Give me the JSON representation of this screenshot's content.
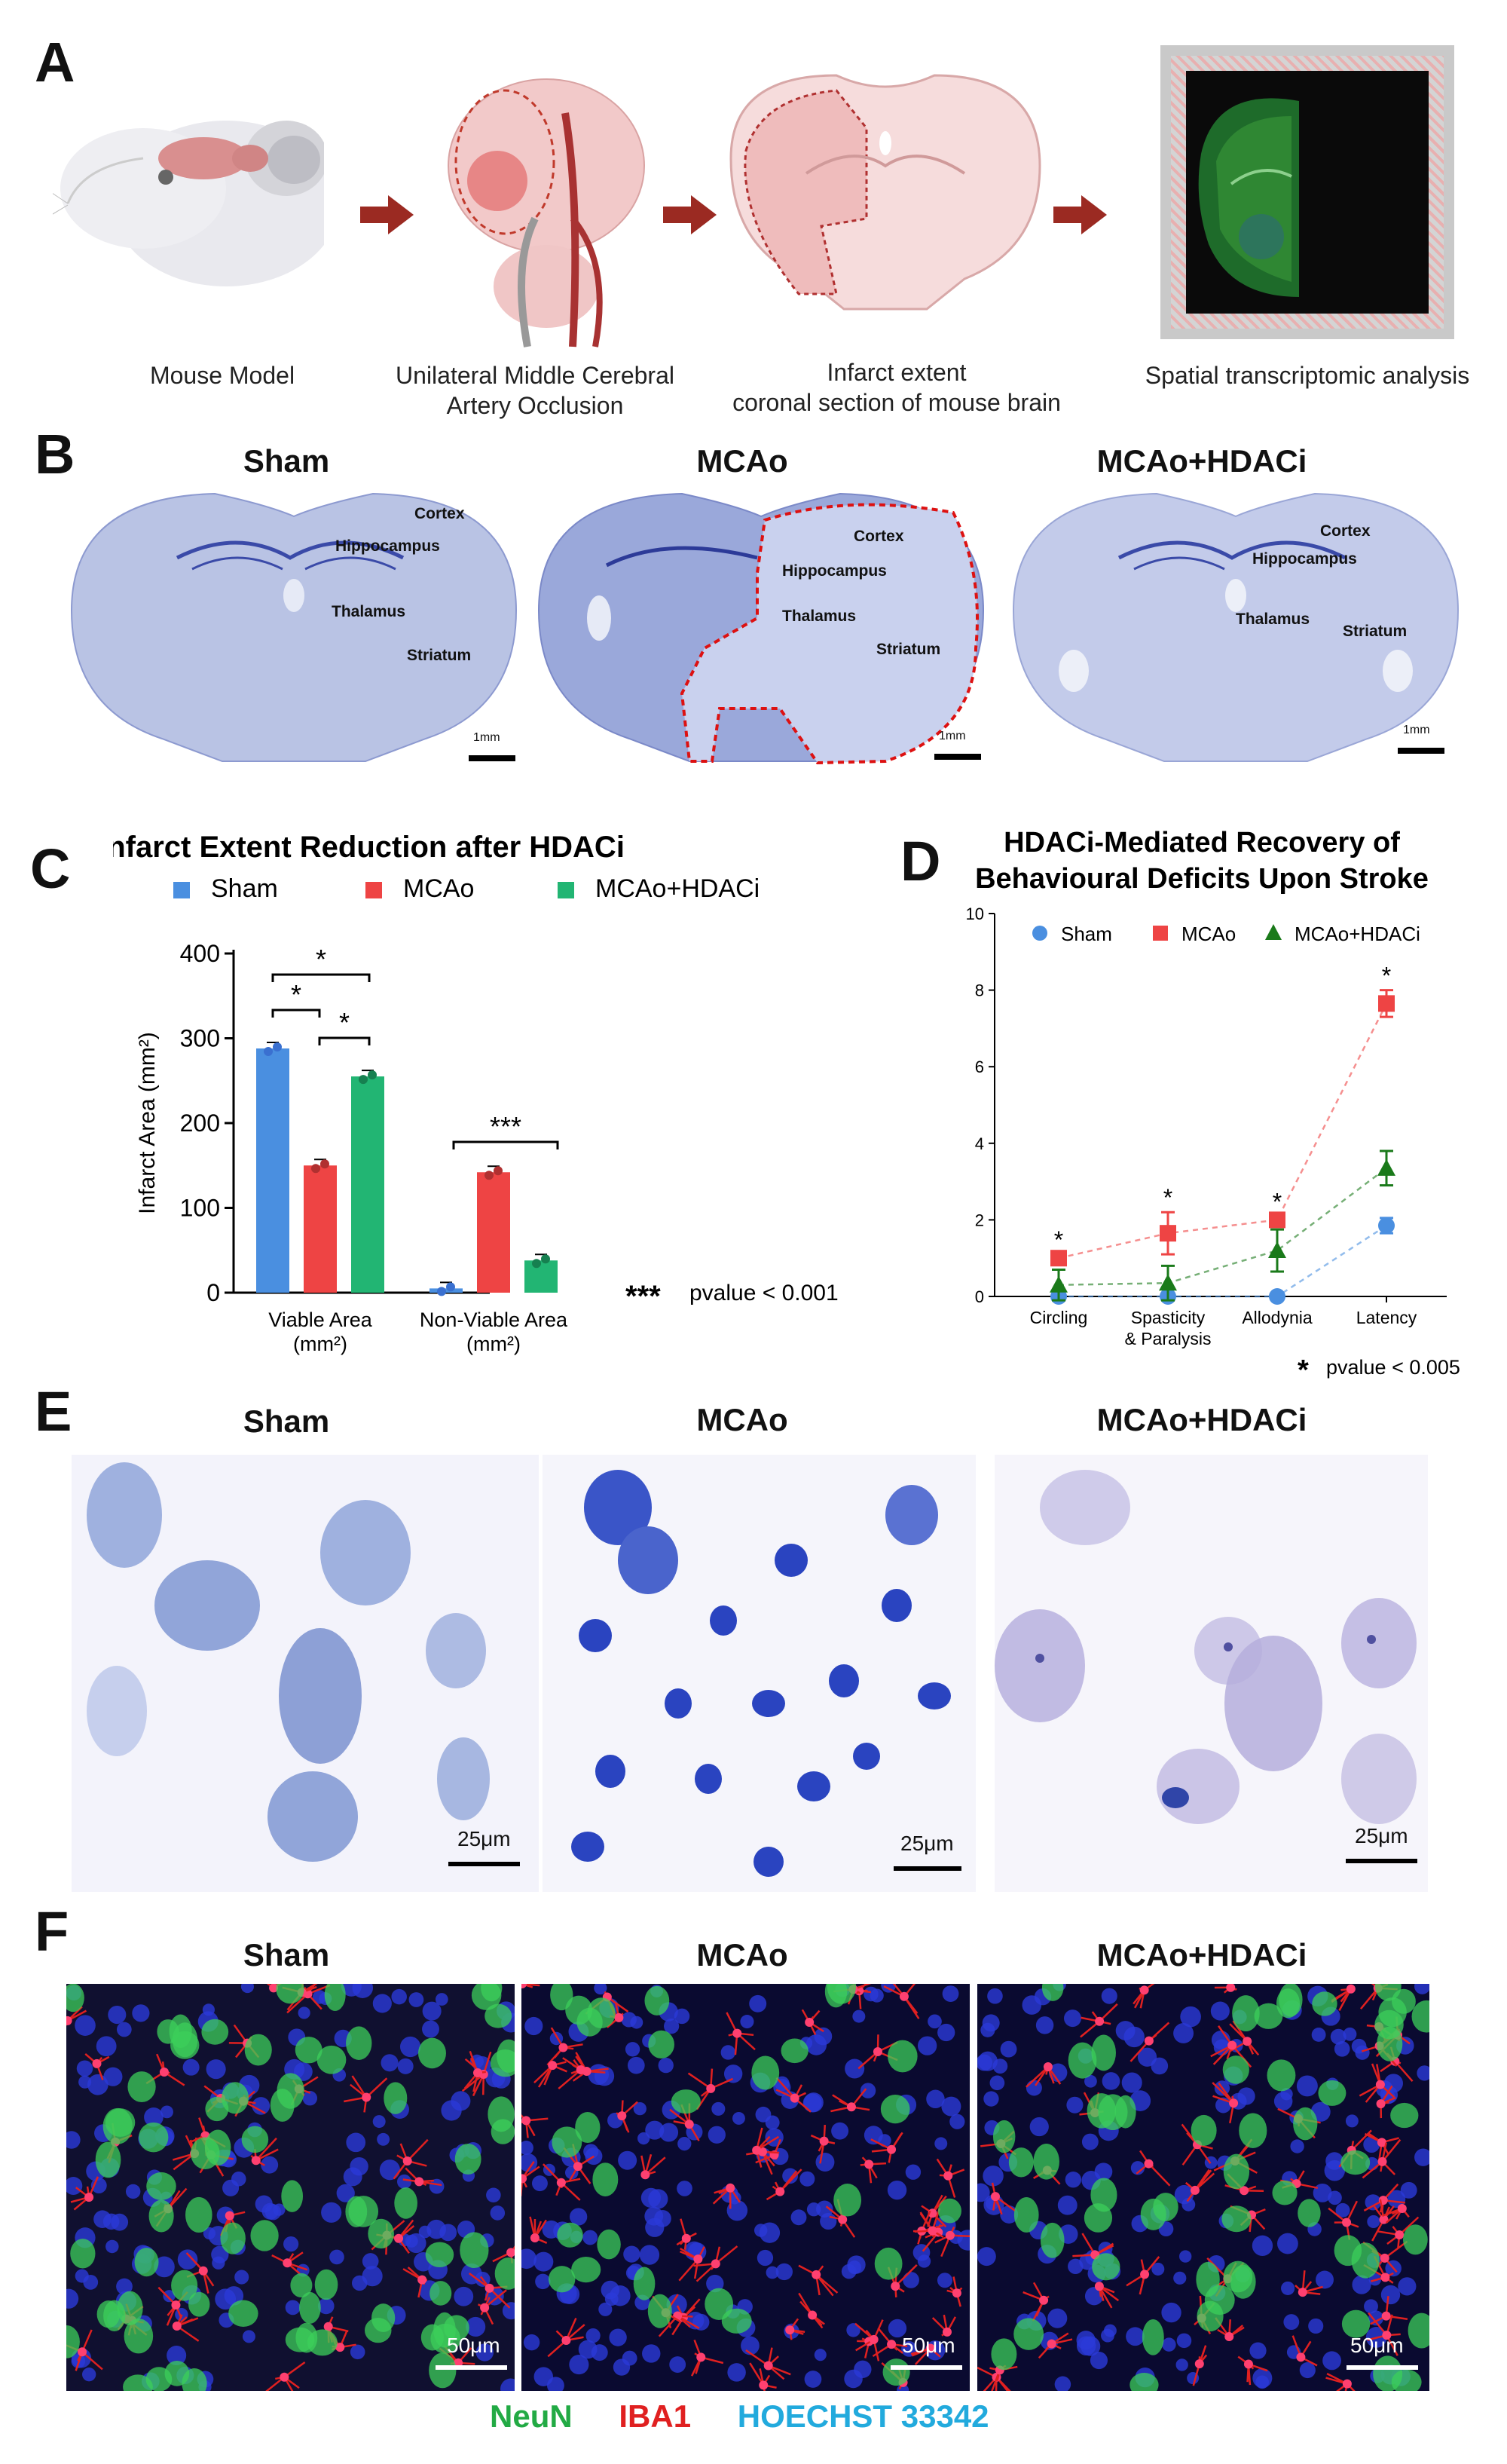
{
  "panels": {
    "A": "A",
    "B": "B",
    "C": "C",
    "D": "D",
    "E": "E",
    "F": "F"
  },
  "panel_a": {
    "steps": [
      {
        "caption": "Mouse Model"
      },
      {
        "caption": "Unilateral Middle Cerebral\nArtery Occlusion"
      },
      {
        "caption": "Infarct extent\ncoronal section of mouse brain"
      },
      {
        "caption": "Spatial transcriptomic analysis"
      }
    ]
  },
  "panel_b": {
    "groups": [
      {
        "title": "Sham",
        "regions": [
          "Cortex",
          "Hippocampus",
          "Thalamus",
          "Striatum"
        ],
        "scale": "1mm"
      },
      {
        "title": "MCAo",
        "regions": [
          "Cortex",
          "Hippocampus",
          "Thalamus",
          "Striatum"
        ],
        "scale": "1mm"
      },
      {
        "title": "MCAo+HDACi",
        "regions": [
          "Cortex",
          "Hippocampus",
          "Thalamus",
          "Striatum"
        ],
        "scale": "1mm"
      }
    ]
  },
  "chart_data": [
    {
      "type": "bar",
      "title": "Infarct Extent Reduction after HDACi",
      "ylabel": "Infarct  Area (mm²)",
      "ylim": [
        0,
        400
      ],
      "yticks": [
        0,
        100,
        200,
        300,
        400
      ],
      "categories": [
        "Viable Area\n(mm²)",
        "Non-Viable Area\n(mm²)"
      ],
      "series": [
        {
          "name": "Sham",
          "color": "#4a8fe0",
          "values": [
            288,
            5
          ]
        },
        {
          "name": "MCAo",
          "color": "#ee4444",
          "values": [
            150,
            142
          ]
        },
        {
          "name": "MCAo+HDACi",
          "color": "#22b573",
          "values": [
            255,
            38
          ]
        }
      ],
      "significance": [
        "*",
        "*",
        "*",
        "***"
      ],
      "note_symbol": "***",
      "note": "pvalue < 0.001"
    },
    {
      "type": "line",
      "title": "HDACi-Mediated Recovery of\nBehavioural Deficits Upon Stroke",
      "ylim": [
        0,
        10
      ],
      "yticks": [
        0,
        2,
        4,
        6,
        8,
        10
      ],
      "categories": [
        "Circling",
        "Spasticity\n& Paralysis",
        "Allodynia",
        "Latency"
      ],
      "series": [
        {
          "name": "Sham",
          "color": "#4a8fe0",
          "marker": "circle",
          "values": [
            0,
            0,
            0,
            1.85
          ],
          "errors": [
            0,
            0,
            0,
            0.2
          ]
        },
        {
          "name": "MCAo",
          "color": "#ee4444",
          "marker": "square",
          "values": [
            1.0,
            1.65,
            2.0,
            7.65
          ],
          "errors": [
            0.1,
            0.55,
            0.1,
            0.35
          ]
        },
        {
          "name": "MCAo+HDACi",
          "color": "#1a7a1a",
          "marker": "triangle",
          "values": [
            0.3,
            0.35,
            1.2,
            3.35
          ],
          "errors": [
            0.4,
            0.45,
            0.55,
            0.45
          ]
        }
      ],
      "significance": [
        "*",
        "*",
        "*",
        "*"
      ],
      "note_symbol": "*",
      "note": "pvalue < 0.005"
    }
  ],
  "panel_e": {
    "groups": [
      {
        "title": "Sham",
        "scale": "25μm"
      },
      {
        "title": "MCAo",
        "scale": "25μm"
      },
      {
        "title": "MCAo+HDACi",
        "scale": "25μm"
      }
    ]
  },
  "panel_f": {
    "groups": [
      {
        "title": "Sham",
        "scale": "50μm"
      },
      {
        "title": "MCAo",
        "scale": "50μm"
      },
      {
        "title": "MCAo+HDACi",
        "scale": "50μm"
      }
    ],
    "stains": [
      {
        "label": "NeuN",
        "color": "#22aa44"
      },
      {
        "label": "IBA1",
        "color": "#e02020"
      },
      {
        "label": "HOECHST 33342",
        "color": "#22aadd"
      }
    ]
  }
}
